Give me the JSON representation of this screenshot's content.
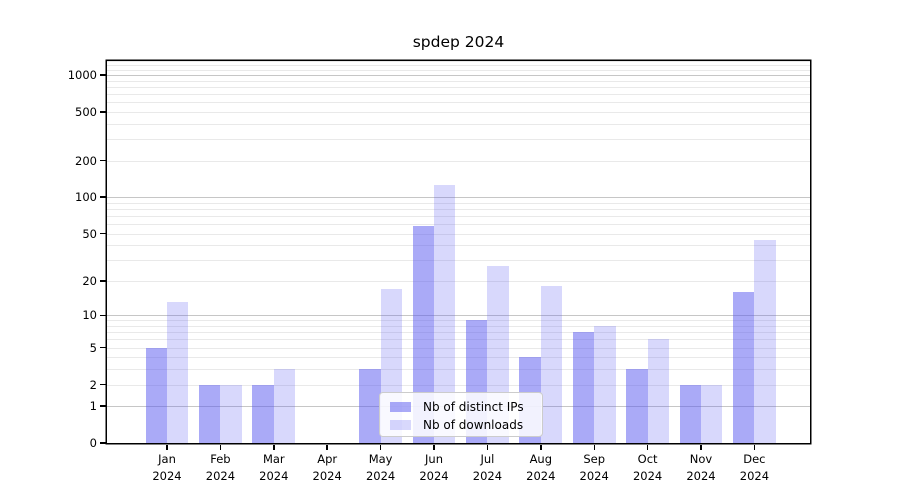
{
  "chart_data": {
    "type": "bar",
    "title": "spdep 2024",
    "categories": [
      "Jan",
      "Feb",
      "Mar",
      "Apr",
      "May",
      "Jun",
      "Jul",
      "Aug",
      "Sep",
      "Oct",
      "Nov",
      "Dec"
    ],
    "year_label": "2024",
    "series": [
      {
        "name": "Nb of distinct IPs",
        "color": "rgba(85,85,240,0.50)",
        "values": [
          5,
          2,
          2,
          0,
          3,
          58,
          9,
          4,
          7,
          3,
          2,
          16
        ]
      },
      {
        "name": "Nb of downloads",
        "color": "rgba(85,85,240,0.23)",
        "values": [
          13,
          2,
          3,
          0,
          17,
          127,
          27,
          18,
          8,
          6,
          2,
          44
        ]
      }
    ],
    "yscale": "log1p",
    "ylim": [
      0,
      1300
    ],
    "yticks": [
      0,
      1,
      2,
      5,
      10,
      20,
      50,
      100,
      200,
      500,
      1000
    ],
    "grid": true,
    "legend_position": "lower center",
    "colors": {
      "major_grid": "#c6c6c6",
      "minor_grid": "#e9e9e9",
      "spine": "#000000",
      "background": "#ffffff"
    }
  }
}
